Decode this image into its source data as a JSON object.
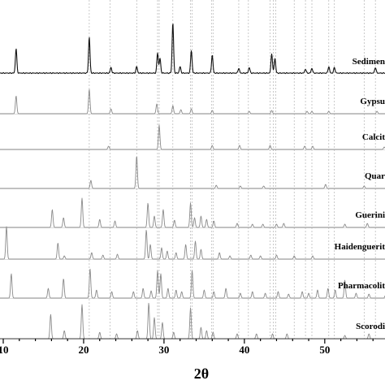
{
  "chart_data": {
    "type": "line",
    "title": "",
    "xlabel": "2θ",
    "ylabel": "",
    "xlim": [
      10,
      58
    ],
    "xticks": [
      10,
      20,
      30,
      40,
      50
    ],
    "grid": false,
    "reference_lines_2theta": [
      20.7,
      23.3,
      26.6,
      29.2,
      29.4,
      31.1,
      33.3,
      33.5,
      35.9,
      36.1,
      39.3,
      40.5,
      43.2,
      43.6,
      43.9,
      46.2,
      47.6,
      48.4,
      50.5,
      51.2,
      54.9,
      56.3
    ],
    "series": [
      {
        "name": "Sedimen",
        "style": "black",
        "peaks": [
          [
            11.6,
            30
          ],
          [
            20.7,
            44
          ],
          [
            23.4,
            7
          ],
          [
            26.6,
            8
          ],
          [
            29.2,
            25
          ],
          [
            29.5,
            18
          ],
          [
            31.1,
            62
          ],
          [
            32.0,
            8
          ],
          [
            33.4,
            28
          ],
          [
            36.0,
            22
          ],
          [
            39.3,
            6
          ],
          [
            40.6,
            7
          ],
          [
            43.4,
            24
          ],
          [
            43.8,
            18
          ],
          [
            47.6,
            5
          ],
          [
            48.4,
            6
          ],
          [
            50.5,
            8
          ],
          [
            51.2,
            7
          ],
          [
            56.3,
            7
          ]
        ]
      },
      {
        "name": "Gypsu",
        "style": "gray",
        "peaks": [
          [
            11.6,
            22
          ],
          [
            20.7,
            30
          ],
          [
            23.4,
            6
          ],
          [
            29.1,
            12
          ],
          [
            31.1,
            10
          ],
          [
            32.1,
            5
          ],
          [
            33.4,
            6
          ],
          [
            36.0,
            4
          ],
          [
            40.6,
            3
          ],
          [
            43.4,
            4
          ],
          [
            47.8,
            3
          ],
          [
            48.4,
            3
          ],
          [
            50.5,
            3
          ],
          [
            56.5,
            3
          ]
        ]
      },
      {
        "name": "Calcit",
        "style": "gray",
        "peaks": [
          [
            23.1,
            4
          ],
          [
            29.4,
            30
          ],
          [
            36.0,
            5
          ],
          [
            39.4,
            5
          ],
          [
            43.2,
            5
          ],
          [
            47.5,
            4
          ],
          [
            48.5,
            4
          ],
          [
            57.4,
            3
          ]
        ]
      },
      {
        "name": "Quar",
        "style": "gray",
        "peaks": [
          [
            20.9,
            10
          ],
          [
            26.6,
            40
          ],
          [
            36.5,
            4
          ],
          [
            39.5,
            3
          ],
          [
            42.4,
            3
          ],
          [
            50.1,
            5
          ],
          [
            54.9,
            3
          ]
        ]
      },
      {
        "name": "Guerini",
        "style": "gray",
        "peaks": [
          [
            16.1,
            22
          ],
          [
            17.5,
            12
          ],
          [
            19.8,
            36
          ],
          [
            22.0,
            10
          ],
          [
            23.9,
            8
          ],
          [
            28.0,
            30
          ],
          [
            28.8,
            14
          ],
          [
            29.9,
            22
          ],
          [
            31.3,
            9
          ],
          [
            33.3,
            30
          ],
          [
            33.8,
            12
          ],
          [
            34.6,
            14
          ],
          [
            35.3,
            10
          ],
          [
            36.2,
            8
          ],
          [
            39.1,
            5
          ],
          [
            41.0,
            4
          ],
          [
            42.3,
            4
          ],
          [
            44.0,
            4
          ],
          [
            44.9,
            5
          ],
          [
            52.5,
            4
          ],
          [
            55.3,
            5
          ]
        ]
      },
      {
        "name": "Haidenguerit",
        "style": "gray",
        "peaks": [
          [
            10.4,
            40
          ],
          [
            16.8,
            20
          ],
          [
            17.6,
            4
          ],
          [
            21.0,
            8
          ],
          [
            22.4,
            5
          ],
          [
            24.2,
            6
          ],
          [
            27.8,
            36
          ],
          [
            28.3,
            18
          ],
          [
            29.7,
            14
          ],
          [
            30.4,
            10
          ],
          [
            31.5,
            8
          ],
          [
            32.7,
            18
          ],
          [
            33.9,
            22
          ],
          [
            34.6,
            12
          ],
          [
            36.9,
            8
          ],
          [
            38.2,
            4
          ],
          [
            40.8,
            5
          ],
          [
            42.0,
            4
          ],
          [
            44.0,
            5
          ],
          [
            46.2,
            4
          ],
          [
            48.5,
            4
          ]
        ]
      },
      {
        "name": "Pharmacolit",
        "style": "gray",
        "peaks": [
          [
            11.0,
            30
          ],
          [
            15.6,
            12
          ],
          [
            17.5,
            24
          ],
          [
            20.8,
            36
          ],
          [
            21.6,
            10
          ],
          [
            23.5,
            8
          ],
          [
            26.2,
            8
          ],
          [
            27.4,
            12
          ],
          [
            28.4,
            9
          ],
          [
            29.2,
            34
          ],
          [
            29.6,
            30
          ],
          [
            30.5,
            12
          ],
          [
            31.5,
            10
          ],
          [
            32.2,
            8
          ],
          [
            33.5,
            34
          ],
          [
            35.0,
            10
          ],
          [
            36.2,
            8
          ],
          [
            37.7,
            12
          ],
          [
            39.5,
            6
          ],
          [
            41.0,
            8
          ],
          [
            42.6,
            6
          ],
          [
            44.2,
            8
          ],
          [
            45.5,
            5
          ],
          [
            47.2,
            8
          ],
          [
            48.0,
            6
          ],
          [
            49.1,
            10
          ],
          [
            50.4,
            12
          ],
          [
            51.3,
            10
          ],
          [
            52.5,
            22
          ],
          [
            53.9,
            6
          ],
          [
            55.5,
            5
          ],
          [
            57.6,
            6
          ]
        ]
      },
      {
        "name": "Scorodi",
        "style": "gray",
        "peaks": [
          [
            15.9,
            30
          ],
          [
            17.6,
            10
          ],
          [
            19.8,
            42
          ],
          [
            22.0,
            8
          ],
          [
            24.1,
            6
          ],
          [
            26.7,
            10
          ],
          [
            28.1,
            44
          ],
          [
            28.8,
            26
          ],
          [
            29.8,
            20
          ],
          [
            31.2,
            8
          ],
          [
            33.3,
            38
          ],
          [
            34.6,
            14
          ],
          [
            35.3,
            10
          ],
          [
            36.1,
            8
          ],
          [
            39.1,
            6
          ],
          [
            41.5,
            6
          ],
          [
            43.5,
            6
          ],
          [
            45.3,
            6
          ],
          [
            52.5,
            4
          ],
          [
            55.5,
            6
          ]
        ]
      }
    ]
  }
}
